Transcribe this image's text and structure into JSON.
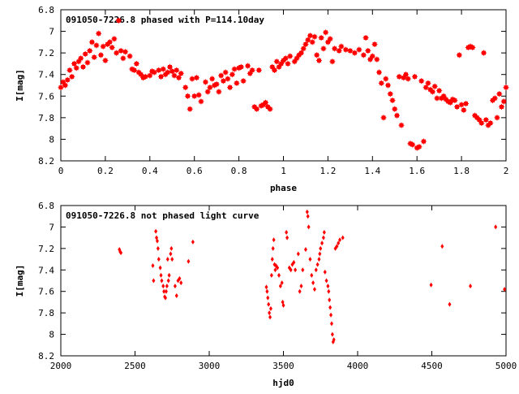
{
  "chart_data": [
    {
      "type": "scatter",
      "title": "091050-7226.8 phased with P=114.10day",
      "xlabel": "phase",
      "ylabel": "I[mag]",
      "xlim": [
        0,
        2
      ],
      "ylim": [
        6.8,
        8.2
      ],
      "y_inverted": true,
      "xticks": [
        "0",
        "0.2",
        "0.4",
        "0.6",
        "0.8",
        "1",
        "1.2",
        "1.4",
        "1.6",
        "1.8",
        "2"
      ],
      "yticks": [
        "6.8",
        "7",
        "7.2",
        "7.4",
        "7.6",
        "7.8",
        "8",
        "8.2"
      ],
      "grid": false,
      "marker_color": "#ff0000",
      "points": [
        [
          0.0,
          7.52
        ],
        [
          0.01,
          7.47
        ],
        [
          0.02,
          7.5
        ],
        [
          0.03,
          7.45
        ],
        [
          0.04,
          7.36
        ],
        [
          0.05,
          7.42
        ],
        [
          0.06,
          7.3
        ],
        [
          0.07,
          7.34
        ],
        [
          0.08,
          7.28
        ],
        [
          0.09,
          7.25
        ],
        [
          0.1,
          7.33
        ],
        [
          0.11,
          7.21
        ],
        [
          0.12,
          7.29
        ],
        [
          0.13,
          7.18
        ],
        [
          0.14,
          7.1
        ],
        [
          0.15,
          7.24
        ],
        [
          0.16,
          7.13
        ],
        [
          0.17,
          7.02
        ],
        [
          0.18,
          7.22
        ],
        [
          0.19,
          7.14
        ],
        [
          0.2,
          7.27
        ],
        [
          0.21,
          7.12
        ],
        [
          0.22,
          7.1
        ],
        [
          0.23,
          7.15
        ],
        [
          0.24,
          7.07
        ],
        [
          0.25,
          7.2
        ],
        [
          0.26,
          6.9
        ],
        [
          0.27,
          7.18
        ],
        [
          0.28,
          7.25
        ],
        [
          0.29,
          7.19
        ],
        [
          0.31,
          7.23
        ],
        [
          0.32,
          7.35
        ],
        [
          0.33,
          7.36
        ],
        [
          0.34,
          7.3
        ],
        [
          0.35,
          7.38
        ],
        [
          0.36,
          7.4
        ],
        [
          0.37,
          7.43
        ],
        [
          0.38,
          7.42
        ],
        [
          0.4,
          7.41
        ],
        [
          0.41,
          7.37
        ],
        [
          0.42,
          7.38
        ],
        [
          0.44,
          7.36
        ],
        [
          0.45,
          7.42
        ],
        [
          0.46,
          7.35
        ],
        [
          0.47,
          7.4
        ],
        [
          0.48,
          7.38
        ],
        [
          0.49,
          7.33
        ],
        [
          0.5,
          7.37
        ],
        [
          0.51,
          7.41
        ],
        [
          0.52,
          7.36
        ],
        [
          0.53,
          7.43
        ],
        [
          0.54,
          7.39
        ],
        [
          0.56,
          7.52
        ],
        [
          0.57,
          7.6
        ],
        [
          0.58,
          7.72
        ],
        [
          0.59,
          7.44
        ],
        [
          0.6,
          7.6
        ],
        [
          0.61,
          7.43
        ],
        [
          0.62,
          7.59
        ],
        [
          0.63,
          7.65
        ],
        [
          0.65,
          7.47
        ],
        [
          0.66,
          7.56
        ],
        [
          0.67,
          7.52
        ],
        [
          0.68,
          7.44
        ],
        [
          0.69,
          7.5
        ],
        [
          0.7,
          7.49
        ],
        [
          0.71,
          7.56
        ],
        [
          0.72,
          7.41
        ],
        [
          0.73,
          7.46
        ],
        [
          0.74,
          7.38
        ],
        [
          0.75,
          7.44
        ],
        [
          0.76,
          7.52
        ],
        [
          0.77,
          7.4
        ],
        [
          0.78,
          7.35
        ],
        [
          0.79,
          7.48
        ],
        [
          0.8,
          7.34
        ],
        [
          0.81,
          7.33
        ],
        [
          0.82,
          7.46
        ],
        [
          0.84,
          7.32
        ],
        [
          0.85,
          7.39
        ],
        [
          0.86,
          7.36
        ],
        [
          0.87,
          7.7
        ],
        [
          0.88,
          7.72
        ],
        [
          0.89,
          7.36
        ],
        [
          0.9,
          7.69
        ],
        [
          0.91,
          7.68
        ],
        [
          0.92,
          7.66
        ],
        [
          0.93,
          7.7
        ],
        [
          0.94,
          7.72
        ],
        [
          0.95,
          7.33
        ],
        [
          0.96,
          7.36
        ],
        [
          0.97,
          7.28
        ],
        [
          0.98,
          7.33
        ],
        [
          0.99,
          7.3
        ],
        [
          1.0,
          7.27
        ],
        [
          1.01,
          7.25
        ],
        [
          1.02,
          7.3
        ],
        [
          1.03,
          7.23
        ],
        [
          1.05,
          7.28
        ],
        [
          1.06,
          7.25
        ],
        [
          1.07,
          7.22
        ],
        [
          1.08,
          7.2
        ],
        [
          1.09,
          7.16
        ],
        [
          1.1,
          7.12
        ],
        [
          1.11,
          7.08
        ],
        [
          1.12,
          7.04
        ],
        [
          1.13,
          7.1
        ],
        [
          1.14,
          7.05
        ],
        [
          1.15,
          7.22
        ],
        [
          1.16,
          7.27
        ],
        [
          1.17,
          7.06
        ],
        [
          1.18,
          7.16
        ],
        [
          1.19,
          7.01
        ],
        [
          1.2,
          7.1
        ],
        [
          1.21,
          7.07
        ],
        [
          1.22,
          7.28
        ],
        [
          1.23,
          7.16
        ],
        [
          1.25,
          7.18
        ],
        [
          1.26,
          7.14
        ],
        [
          1.28,
          7.17
        ],
        [
          1.3,
          7.18
        ],
        [
          1.32,
          7.2
        ],
        [
          1.34,
          7.17
        ],
        [
          1.36,
          7.22
        ],
        [
          1.37,
          7.06
        ],
        [
          1.38,
          7.18
        ],
        [
          1.39,
          7.26
        ],
        [
          1.4,
          7.23
        ],
        [
          1.41,
          7.12
        ],
        [
          1.42,
          7.26
        ],
        [
          1.43,
          7.38
        ],
        [
          1.44,
          7.48
        ],
        [
          1.45,
          7.8
        ],
        [
          1.46,
          7.44
        ],
        [
          1.47,
          7.5
        ],
        [
          1.48,
          7.58
        ],
        [
          1.49,
          7.64
        ],
        [
          1.5,
          7.72
        ],
        [
          1.51,
          7.78
        ],
        [
          1.52,
          7.42
        ],
        [
          1.53,
          7.87
        ],
        [
          1.54,
          7.43
        ],
        [
          1.55,
          7.4
        ],
        [
          1.56,
          7.44
        ],
        [
          1.57,
          8.04
        ],
        [
          1.58,
          8.05
        ],
        [
          1.59,
          7.42
        ],
        [
          1.6,
          8.08
        ],
        [
          1.61,
          8.07
        ],
        [
          1.62,
          7.46
        ],
        [
          1.63,
          8.02
        ],
        [
          1.64,
          7.52
        ],
        [
          1.65,
          7.48
        ],
        [
          1.66,
          7.54
        ],
        [
          1.67,
          7.56
        ],
        [
          1.68,
          7.51
        ],
        [
          1.69,
          7.62
        ],
        [
          1.7,
          7.55
        ],
        [
          1.71,
          7.62
        ],
        [
          1.72,
          7.6
        ],
        [
          1.73,
          7.63
        ],
        [
          1.74,
          7.65
        ],
        [
          1.75,
          7.66
        ],
        [
          1.76,
          7.63
        ],
        [
          1.77,
          7.64
        ],
        [
          1.78,
          7.7
        ],
        [
          1.79,
          7.22
        ],
        [
          1.8,
          7.68
        ],
        [
          1.81,
          7.73
        ],
        [
          1.82,
          7.67
        ],
        [
          1.83,
          7.15
        ],
        [
          1.84,
          7.14
        ],
        [
          1.85,
          7.15
        ],
        [
          1.86,
          7.78
        ],
        [
          1.87,
          7.8
        ],
        [
          1.88,
          7.82
        ],
        [
          1.89,
          7.85
        ],
        [
          1.9,
          7.2
        ],
        [
          1.91,
          7.82
        ],
        [
          1.92,
          7.87
        ],
        [
          1.93,
          7.85
        ],
        [
          1.94,
          7.64
        ],
        [
          1.95,
          7.62
        ],
        [
          1.96,
          7.8
        ],
        [
          1.97,
          7.58
        ],
        [
          1.98,
          7.7
        ],
        [
          1.99,
          7.65
        ],
        [
          2.0,
          7.52
        ]
      ]
    },
    {
      "type": "scatter",
      "title": "091050-7226.8 not phased light curve",
      "xlabel": "hjd0",
      "ylabel": "I[mag]",
      "xlim": [
        2000,
        5000
      ],
      "ylim": [
        6.8,
        8.2
      ],
      "y_inverted": true,
      "xticks": [
        "2000",
        "2500",
        "3000",
        "3500",
        "4000",
        "4500",
        "5000"
      ],
      "yticks": [
        "6.8",
        "7",
        "7.2",
        "7.4",
        "7.6",
        "7.8",
        "8",
        "8.2"
      ],
      "grid": false,
      "marker_color": "#ff0000",
      "points": [
        [
          2395,
          7.21
        ],
        [
          2400,
          7.23
        ],
        [
          2405,
          7.24
        ],
        [
          2620,
          7.36
        ],
        [
          2625,
          7.5
        ],
        [
          2640,
          7.04
        ],
        [
          2645,
          7.1
        ],
        [
          2650,
          7.13
        ],
        [
          2655,
          7.2
        ],
        [
          2660,
          7.3
        ],
        [
          2670,
          7.38
        ],
        [
          2675,
          7.45
        ],
        [
          2680,
          7.5
        ],
        [
          2690,
          7.55
        ],
        [
          2695,
          7.6
        ],
        [
          2700,
          7.65
        ],
        [
          2705,
          7.66
        ],
        [
          2710,
          7.6
        ],
        [
          2715,
          7.55
        ],
        [
          2720,
          7.3
        ],
        [
          2725,
          7.5
        ],
        [
          2730,
          7.45
        ],
        [
          2740,
          7.25
        ],
        [
          2745,
          7.2
        ],
        [
          2750,
          7.3
        ],
        [
          2770,
          7.55
        ],
        [
          2780,
          7.64
        ],
        [
          2790,
          7.5
        ],
        [
          2800,
          7.48
        ],
        [
          2810,
          7.52
        ],
        [
          2860,
          7.32
        ],
        [
          2890,
          7.14
        ],
        [
          3385,
          7.56
        ],
        [
          3390,
          7.6
        ],
        [
          3395,
          7.66
        ],
        [
          3400,
          7.72
        ],
        [
          3405,
          7.8
        ],
        [
          3410,
          7.84
        ],
        [
          3415,
          7.76
        ],
        [
          3420,
          7.45
        ],
        [
          3425,
          7.3
        ],
        [
          3430,
          7.2
        ],
        [
          3435,
          7.12
        ],
        [
          3440,
          7.35
        ],
        [
          3445,
          7.4
        ],
        [
          3450,
          7.36
        ],
        [
          3460,
          7.38
        ],
        [
          3470,
          7.45
        ],
        [
          3480,
          7.55
        ],
        [
          3490,
          7.52
        ],
        [
          3495,
          7.7
        ],
        [
          3500,
          7.73
        ],
        [
          3520,
          7.05
        ],
        [
          3525,
          7.1
        ],
        [
          3540,
          7.38
        ],
        [
          3550,
          7.4
        ],
        [
          3560,
          7.35
        ],
        [
          3570,
          7.33
        ],
        [
          3580,
          7.4
        ],
        [
          3600,
          7.25
        ],
        [
          3610,
          7.6
        ],
        [
          3620,
          7.55
        ],
        [
          3630,
          7.4
        ],
        [
          3650,
          7.21
        ],
        [
          3660,
          6.86
        ],
        [
          3665,
          6.9
        ],
        [
          3670,
          7.0
        ],
        [
          3680,
          7.3
        ],
        [
          3690,
          7.45
        ],
        [
          3700,
          7.52
        ],
        [
          3710,
          7.58
        ],
        [
          3720,
          7.4
        ],
        [
          3730,
          7.35
        ],
        [
          3740,
          7.3
        ],
        [
          3745,
          7.25
        ],
        [
          3750,
          7.2
        ],
        [
          3760,
          7.15
        ],
        [
          3770,
          7.1
        ],
        [
          3775,
          7.05
        ],
        [
          3780,
          7.42
        ],
        [
          3790,
          7.5
        ],
        [
          3800,
          7.55
        ],
        [
          3805,
          7.6
        ],
        [
          3810,
          7.68
        ],
        [
          3815,
          7.75
        ],
        [
          3820,
          7.82
        ],
        [
          3825,
          7.9
        ],
        [
          3830,
          8.0
        ],
        [
          3835,
          8.07
        ],
        [
          3840,
          8.05
        ],
        [
          3850,
          7.2
        ],
        [
          3860,
          7.18
        ],
        [
          3870,
          7.15
        ],
        [
          3880,
          7.12
        ],
        [
          3900,
          7.1
        ],
        [
          4495,
          7.54
        ],
        [
          4570,
          7.18
        ],
        [
          4620,
          7.72
        ],
        [
          4760,
          7.55
        ],
        [
          4930,
          7.0
        ],
        [
          4990,
          7.58
        ]
      ]
    }
  ]
}
